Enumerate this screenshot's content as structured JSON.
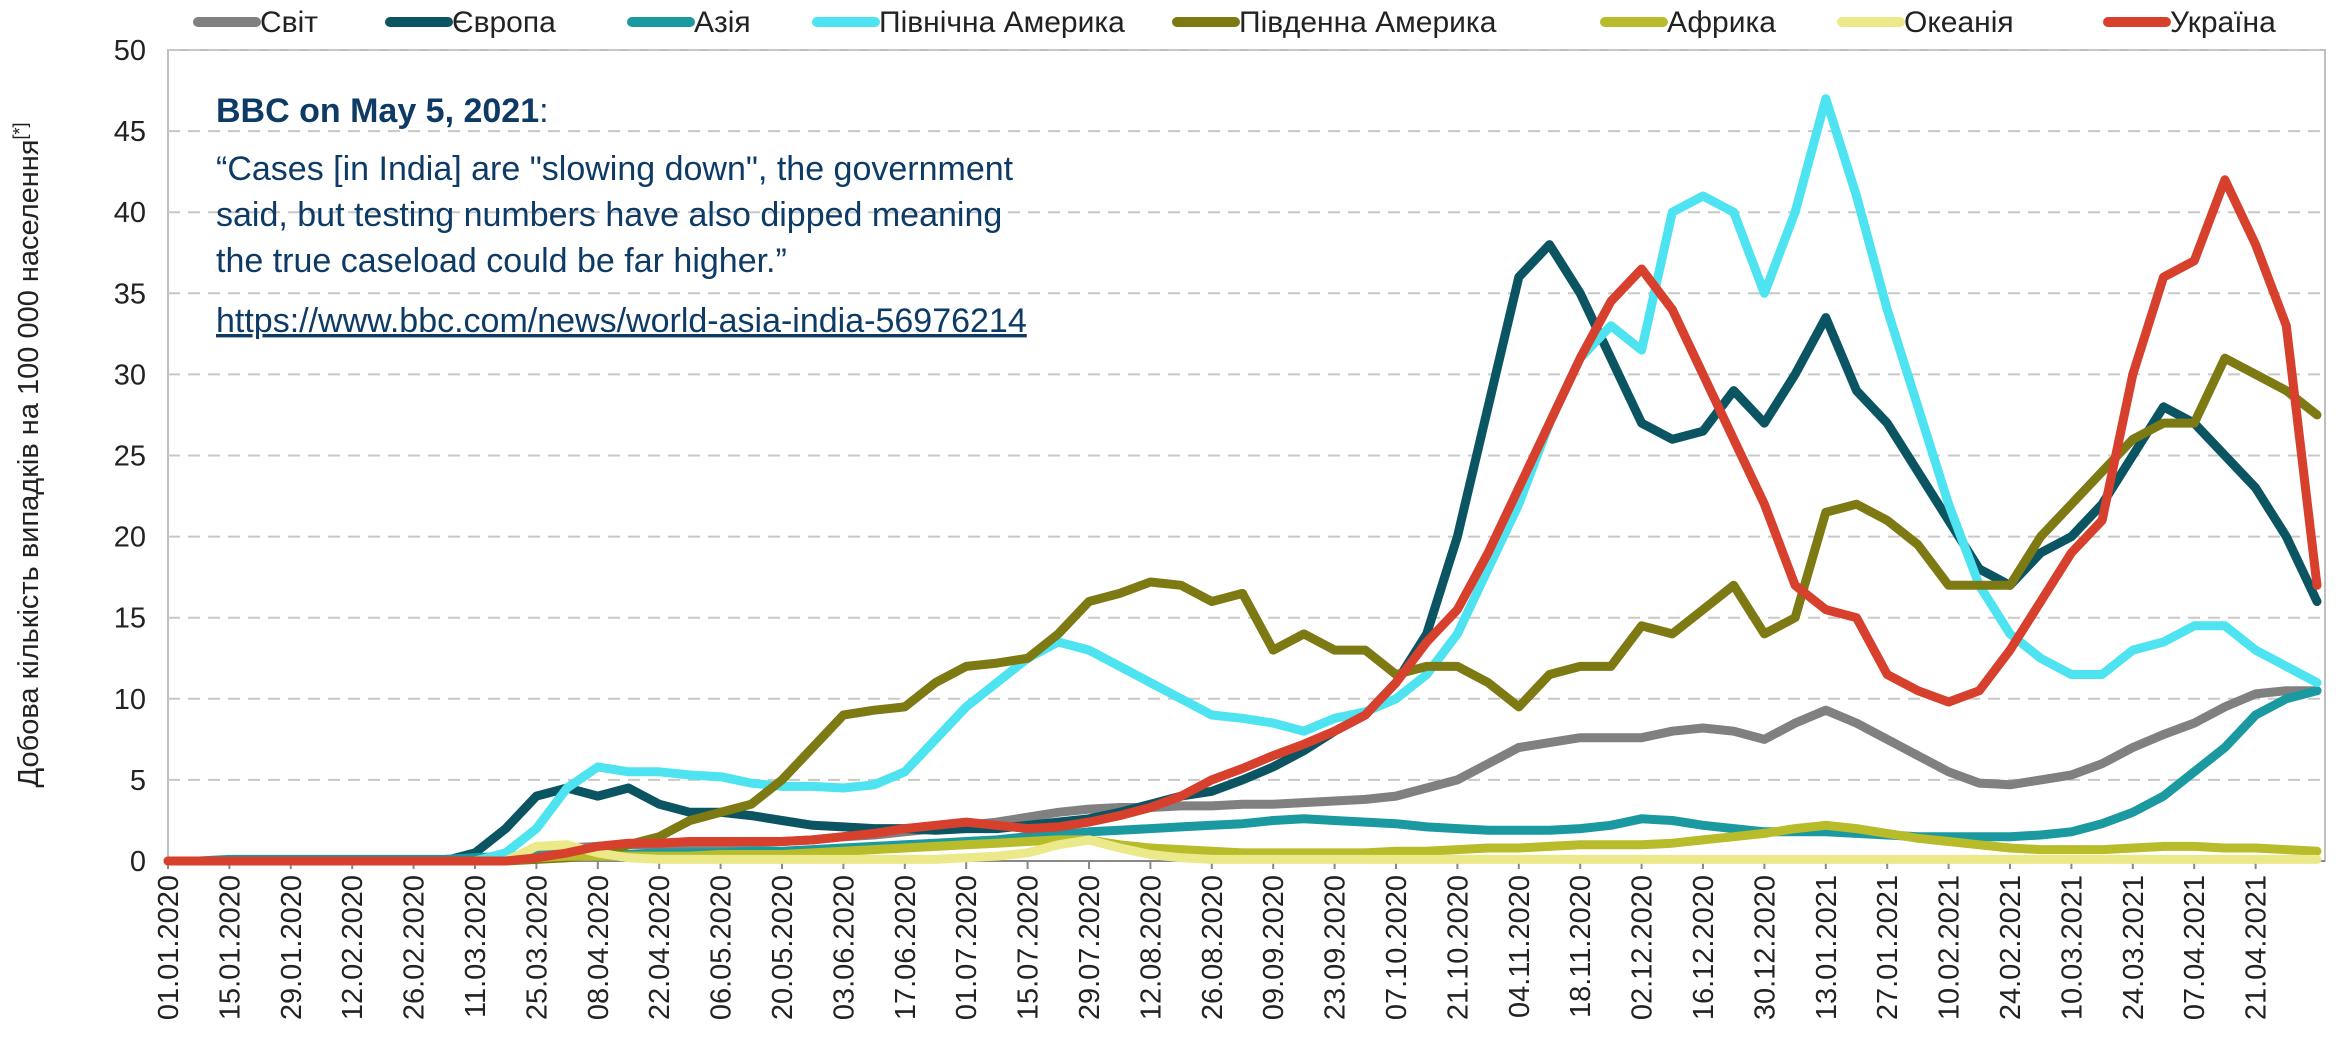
{
  "chart_data": {
    "type": "line",
    "ylabel": "Добова кількість випадків на 100 000 населення",
    "ylabel_note": "[*]",
    "annotation": {
      "heading": "BBC on May 5, 2021",
      "heading_suffix": ":",
      "lines": [
        "“Cases [in India] are \"slowing down\", the government",
        "said, but testing numbers have also dipped meaning",
        "the true caseload could be far higher.”"
      ],
      "link": "https://www.bbc.com/news/world-asia-india-56976214"
    },
    "ylim": [
      0,
      50
    ],
    "yticks": [
      0,
      5,
      10,
      15,
      20,
      25,
      30,
      35,
      40,
      45,
      50
    ],
    "grid": true,
    "categories": [
      "01.01.2020",
      null,
      "15.01.2020",
      null,
      "29.01.2020",
      null,
      "12.02.2020",
      null,
      "26.02.2020",
      null,
      "11.03.2020",
      null,
      "25.03.2020",
      null,
      "08.04.2020",
      null,
      "22.04.2020",
      null,
      "06.05.2020",
      null,
      "20.05.2020",
      null,
      "03.06.2020",
      null,
      "17.06.2020",
      null,
      "01.07.2020",
      null,
      "15.07.2020",
      null,
      "29.07.2020",
      null,
      "12.08.2020",
      null,
      "26.08.2020",
      null,
      "09.09.2020",
      null,
      "23.09.2020",
      null,
      "07.10.2020",
      null,
      "21.10.2020",
      null,
      "04.11.2020",
      null,
      "18.11.2020",
      null,
      "02.12.2020",
      null,
      "16.12.2020",
      null,
      "30.12.2020",
      null,
      "13.01.2021",
      null,
      "27.01.2021",
      null,
      "10.02.2021",
      null,
      "24.02.2021",
      null,
      "10.03.2021",
      null,
      "24.03.2021",
      null,
      "07.04.2021",
      null,
      "21.04.2021",
      null,
      null
    ],
    "series": [
      {
        "name": "Світ",
        "color": "#808080",
        "values": [
          0,
          0,
          0,
          0,
          0,
          0,
          0,
          0,
          0,
          0,
          0,
          0.2,
          0.5,
          0.8,
          0.9,
          1.0,
          1.0,
          1.0,
          1.0,
          1.1,
          1.2,
          1.3,
          1.5,
          1.6,
          1.8,
          2.0,
          2.2,
          2.4,
          2.7,
          3.0,
          3.2,
          3.3,
          3.3,
          3.4,
          3.4,
          3.5,
          3.5,
          3.6,
          3.7,
          3.8,
          4.0,
          4.5,
          5,
          6,
          7,
          7.3,
          7.6,
          7.6,
          7.6,
          8.0,
          8.2,
          8.0,
          7.5,
          8.5,
          9.3,
          8.5,
          7.5,
          6.5,
          5.5,
          4.8,
          4.7,
          5.0,
          5.3,
          6.0,
          7,
          7.8,
          8.5,
          9.5,
          10.3,
          10.5,
          10.5
        ]
      },
      {
        "name": "Європа",
        "color": "#0b5563",
        "values": [
          0,
          0,
          0,
          0,
          0,
          0,
          0,
          0,
          0,
          0,
          0.5,
          2,
          4,
          4.5,
          4,
          4.5,
          3.5,
          3,
          3,
          2.8,
          2.5,
          2.2,
          2.1,
          2.0,
          2.0,
          1.9,
          2.0,
          2.0,
          2.2,
          2.4,
          2.6,
          3.0,
          3.5,
          4.0,
          4.3,
          5.0,
          5.8,
          6.8,
          8,
          9,
          11,
          14,
          20,
          28,
          36,
          38,
          35,
          31,
          27,
          26,
          26.5,
          29,
          27,
          30,
          33.5,
          29,
          27,
          24,
          21,
          18,
          17,
          19,
          20,
          22,
          25,
          28,
          27,
          25,
          23,
          20,
          16
        ]
      },
      {
        "name": "Азія",
        "color": "#1a9aa0",
        "values": [
          0,
          0,
          0.1,
          0.1,
          0.1,
          0.1,
          0.1,
          0.1,
          0.1,
          0.1,
          0.2,
          0.3,
          0.3,
          0.4,
          0.4,
          0.4,
          0.5,
          0.5,
          0.5,
          0.6,
          0.6,
          0.7,
          0.8,
          0.9,
          1.0,
          1.1,
          1.2,
          1.3,
          1.5,
          1.6,
          1.8,
          1.9,
          2.0,
          2.1,
          2.2,
          2.3,
          2.5,
          2.6,
          2.5,
          2.4,
          2.3,
          2.1,
          2.0,
          1.9,
          1.9,
          1.9,
          2.0,
          2.2,
          2.6,
          2.5,
          2.2,
          2.0,
          1.8,
          1.8,
          1.8,
          1.7,
          1.6,
          1.5,
          1.5,
          1.5,
          1.5,
          1.6,
          1.8,
          2.3,
          3,
          4,
          5.5,
          7,
          9,
          10,
          10.5
        ]
      },
      {
        "name": "Північна Америка",
        "color": "#4de3f0",
        "values": [
          0,
          0,
          0,
          0,
          0,
          0,
          0,
          0,
          0,
          0,
          0,
          0.5,
          2,
          4.5,
          5.8,
          5.5,
          5.5,
          5.3,
          5.2,
          4.8,
          4.6,
          4.6,
          4.5,
          4.7,
          5.5,
          7.5,
          9.5,
          11,
          12.5,
          13.5,
          13,
          12,
          11,
          10,
          9,
          8.8,
          8.5,
          8,
          8.8,
          9.2,
          10,
          11.5,
          14,
          18,
          22,
          27,
          31,
          33,
          31.5,
          40,
          41,
          40,
          35,
          40,
          47,
          41,
          34,
          28,
          22,
          17,
          14,
          12.5,
          11.5,
          11.5,
          13,
          13.5,
          14.5,
          14.5,
          13,
          12,
          11
        ]
      },
      {
        "name": "Південна Америка",
        "color": "#7d7a14",
        "values": [
          0,
          0,
          0,
          0,
          0,
          0,
          0,
          0,
          0,
          0,
          0,
          0,
          0.1,
          0.2,
          0.4,
          1.0,
          1.5,
          2.5,
          3,
          3.5,
          5,
          7,
          9,
          9.3,
          9.5,
          11,
          12,
          12.2,
          12.5,
          14,
          16,
          16.5,
          17.2,
          17,
          16,
          16.5,
          13,
          14,
          13,
          13,
          11.5,
          12,
          12,
          11,
          9.5,
          11.5,
          12,
          12,
          14.5,
          14,
          15.5,
          17,
          14,
          15,
          21.5,
          22,
          21,
          19.5,
          17,
          17,
          17,
          20,
          22,
          24,
          26,
          27,
          27,
          31,
          30,
          29,
          27.5
        ]
      },
      {
        "name": "Африка",
        "color": "#b8bc2a",
        "values": [
          0,
          0,
          0,
          0,
          0,
          0,
          0,
          0,
          0,
          0,
          0,
          0,
          0.2,
          0.3,
          0.3,
          0.3,
          0.3,
          0.3,
          0.4,
          0.4,
          0.4,
          0.5,
          0.6,
          0.7,
          0.8,
          0.9,
          1.0,
          1.1,
          1.2,
          1.3,
          1.3,
          1.0,
          0.8,
          0.7,
          0.6,
          0.5,
          0.5,
          0.5,
          0.5,
          0.5,
          0.6,
          0.6,
          0.7,
          0.8,
          0.8,
          0.9,
          1.0,
          1.0,
          1.0,
          1.1,
          1.3,
          1.5,
          1.7,
          2.0,
          2.2,
          2.0,
          1.7,
          1.4,
          1.2,
          1.0,
          0.8,
          0.7,
          0.7,
          0.7,
          0.8,
          0.9,
          0.9,
          0.8,
          0.8,
          0.7,
          0.6
        ]
      },
      {
        "name": "Океанія",
        "color": "#ece98a",
        "values": [
          0,
          0,
          0,
          0,
          0,
          0,
          0,
          0,
          0,
          0,
          0,
          0,
          0.9,
          1.0,
          0.5,
          0.2,
          0.1,
          0.1,
          0.1,
          0.1,
          0.1,
          0.1,
          0.1,
          0.1,
          0.1,
          0.1,
          0.2,
          0.3,
          0.5,
          1.0,
          1.3,
          0.8,
          0.4,
          0.2,
          0.1,
          0.1,
          0.1,
          0.1,
          0.1,
          0.1,
          0.1,
          0.1,
          0.1,
          0.1,
          0.1,
          0.1,
          0.1,
          0.1,
          0.1,
          0.1,
          0.1,
          0.1,
          0.1,
          0.1,
          0.1,
          0.1,
          0.1,
          0.1,
          0.1,
          0.1,
          0.1,
          0.1,
          0.1,
          0.1,
          0.1,
          0.1,
          0.1,
          0.1,
          0.1,
          0.1,
          0.1
        ]
      },
      {
        "name": "Україна",
        "color": "#d7402d",
        "values": [
          0,
          0,
          0,
          0,
          0,
          0,
          0,
          0,
          0,
          0,
          0,
          0,
          0.2,
          0.5,
          0.9,
          1.1,
          1.1,
          1.2,
          1.2,
          1.2,
          1.2,
          1.3,
          1.5,
          1.7,
          2.0,
          2.2,
          2.4,
          2.2,
          2.0,
          2.1,
          2.4,
          2.8,
          3.3,
          4.0,
          5.0,
          5.7,
          6.5,
          7.2,
          8.0,
          9.0,
          11,
          13.5,
          15.5,
          19,
          23,
          27,
          31,
          34.5,
          36.5,
          34,
          30,
          26,
          22,
          17,
          15.5,
          15,
          11.5,
          10.5,
          9.8,
          10.5,
          13,
          16,
          19,
          21,
          30,
          36,
          37,
          42,
          38,
          33,
          17
        ]
      }
    ]
  }
}
